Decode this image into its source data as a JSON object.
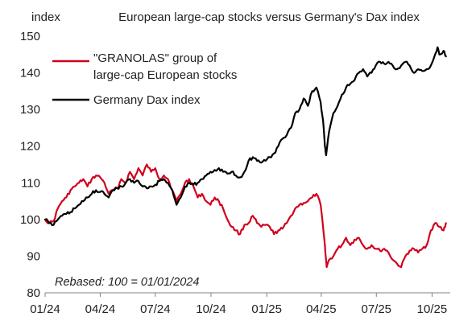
{
  "chart_data": {
    "type": "line",
    "title": "European large-cap stocks versus Germany's Dax index",
    "ylabel": "index",
    "ylim": [
      80,
      150
    ],
    "yticks": [
      80,
      90,
      100,
      110,
      120,
      130,
      140,
      150
    ],
    "xlim": [
      "2024-01-01",
      "2025-10-31"
    ],
    "xticks": [
      "01/24",
      "04/24",
      "07/24",
      "10/24",
      "01/25",
      "04/25",
      "07/25",
      "10/25"
    ],
    "xtick_dates": [
      "2024-01-01",
      "2024-04-01",
      "2024-07-01",
      "2024-10-01",
      "2025-01-01",
      "2025-04-01",
      "2025-07-01",
      "2025-10-01"
    ],
    "note": "Rebased: 100 = 01/01/2024",
    "grid": false,
    "legend_position": "top-left",
    "series": [
      {
        "name": "\"GRANOLAS\" group of large-cap European stocks",
        "name_lines": [
          "\"GRANOLAS\" group of",
          "large-cap European stocks"
        ],
        "color": "#d2001c",
        "points": [
          [
            "2024-01-01",
            100
          ],
          [
            "2024-01-08",
            99
          ],
          [
            "2024-01-15",
            99.5
          ],
          [
            "2024-01-22",
            103
          ],
          [
            "2024-01-29",
            105
          ],
          [
            "2024-02-05",
            106
          ],
          [
            "2024-02-12",
            108
          ],
          [
            "2024-02-19",
            109
          ],
          [
            "2024-02-26",
            110
          ],
          [
            "2024-03-04",
            111
          ],
          [
            "2024-03-11",
            109
          ],
          [
            "2024-03-18",
            111
          ],
          [
            "2024-03-25",
            112
          ],
          [
            "2024-04-01",
            111.5
          ],
          [
            "2024-04-08",
            110
          ],
          [
            "2024-04-15",
            107
          ],
          [
            "2024-04-22",
            108
          ],
          [
            "2024-04-29",
            108.5
          ],
          [
            "2024-05-06",
            111
          ],
          [
            "2024-05-13",
            110
          ],
          [
            "2024-05-20",
            113
          ],
          [
            "2024-05-27",
            111
          ],
          [
            "2024-06-03",
            114
          ],
          [
            "2024-06-10",
            112
          ],
          [
            "2024-06-17",
            115
          ],
          [
            "2024-06-24",
            113
          ],
          [
            "2024-07-01",
            114
          ],
          [
            "2024-07-08",
            111
          ],
          [
            "2024-07-15",
            112
          ],
          [
            "2024-07-22",
            111
          ],
          [
            "2024-07-29",
            108
          ],
          [
            "2024-08-05",
            105
          ],
          [
            "2024-08-12",
            107
          ],
          [
            "2024-08-19",
            110
          ],
          [
            "2024-08-26",
            111
          ],
          [
            "2024-09-02",
            109
          ],
          [
            "2024-09-09",
            106
          ],
          [
            "2024-09-16",
            107
          ],
          [
            "2024-09-23",
            105
          ],
          [
            "2024-09-30",
            104
          ],
          [
            "2024-10-07",
            106
          ],
          [
            "2024-10-14",
            105
          ],
          [
            "2024-10-21",
            103
          ],
          [
            "2024-10-28",
            100
          ],
          [
            "2024-11-04",
            98
          ],
          [
            "2024-11-11",
            97
          ],
          [
            "2024-11-18",
            96
          ],
          [
            "2024-11-25",
            98.5
          ],
          [
            "2024-12-02",
            99
          ],
          [
            "2024-12-09",
            101
          ],
          [
            "2024-12-16",
            99
          ],
          [
            "2024-12-23",
            98
          ],
          [
            "2024-12-30",
            98.5
          ],
          [
            "2025-01-06",
            98
          ],
          [
            "2025-01-13",
            96
          ],
          [
            "2025-01-20",
            97
          ],
          [
            "2025-01-27",
            97.5
          ],
          [
            "2025-02-03",
            99
          ],
          [
            "2025-02-10",
            101
          ],
          [
            "2025-02-17",
            103
          ],
          [
            "2025-02-24",
            104
          ],
          [
            "2025-03-03",
            104.5
          ],
          [
            "2025-03-10",
            105
          ],
          [
            "2025-03-17",
            106
          ],
          [
            "2025-03-24",
            107
          ],
          [
            "2025-03-31",
            104
          ],
          [
            "2025-04-07",
            93
          ],
          [
            "2025-04-10",
            87
          ],
          [
            "2025-04-14",
            89
          ],
          [
            "2025-04-21",
            90
          ],
          [
            "2025-04-28",
            92
          ],
          [
            "2025-05-05",
            93
          ],
          [
            "2025-05-12",
            95
          ],
          [
            "2025-05-19",
            93
          ],
          [
            "2025-05-26",
            94.5
          ],
          [
            "2025-06-02",
            95
          ],
          [
            "2025-06-09",
            93
          ],
          [
            "2025-06-16",
            92
          ],
          [
            "2025-06-23",
            93
          ],
          [
            "2025-06-30",
            92
          ],
          [
            "2025-07-07",
            91.5
          ],
          [
            "2025-07-14",
            92
          ],
          [
            "2025-07-21",
            91
          ],
          [
            "2025-07-28",
            89
          ],
          [
            "2025-08-04",
            88
          ],
          [
            "2025-08-11",
            87
          ],
          [
            "2025-08-18",
            90
          ],
          [
            "2025-08-25",
            91.5
          ],
          [
            "2025-09-01",
            92
          ],
          [
            "2025-09-08",
            91
          ],
          [
            "2025-09-15",
            92
          ],
          [
            "2025-09-22",
            93
          ],
          [
            "2025-09-29",
            97
          ],
          [
            "2025-10-06",
            99
          ],
          [
            "2025-10-13",
            98
          ],
          [
            "2025-10-20",
            97
          ],
          [
            "2025-10-24",
            99
          ]
        ]
      },
      {
        "name": "Germany Dax index",
        "name_lines": [
          "Germany Dax index"
        ],
        "color": "#000000",
        "points": [
          [
            "2024-01-01",
            100
          ],
          [
            "2024-01-08",
            99
          ],
          [
            "2024-01-15",
            98.5
          ],
          [
            "2024-01-22",
            100
          ],
          [
            "2024-01-29",
            101
          ],
          [
            "2024-02-05",
            101.5
          ],
          [
            "2024-02-12",
            102
          ],
          [
            "2024-02-19",
            103
          ],
          [
            "2024-02-26",
            104
          ],
          [
            "2024-03-04",
            105
          ],
          [
            "2024-03-11",
            106
          ],
          [
            "2024-03-18",
            107
          ],
          [
            "2024-03-25",
            108
          ],
          [
            "2024-04-01",
            107.5
          ],
          [
            "2024-04-08",
            107
          ],
          [
            "2024-04-15",
            106
          ],
          [
            "2024-04-22",
            108
          ],
          [
            "2024-04-29",
            108.5
          ],
          [
            "2024-05-06",
            109
          ],
          [
            "2024-05-13",
            110
          ],
          [
            "2024-05-20",
            111
          ],
          [
            "2024-05-27",
            110
          ],
          [
            "2024-06-03",
            110.5
          ],
          [
            "2024-06-10",
            109
          ],
          [
            "2024-06-17",
            108.5
          ],
          [
            "2024-06-24",
            109
          ],
          [
            "2024-07-01",
            109.5
          ],
          [
            "2024-07-08",
            110.5
          ],
          [
            "2024-07-15",
            111
          ],
          [
            "2024-07-22",
            110
          ],
          [
            "2024-07-29",
            108
          ],
          [
            "2024-08-05",
            104
          ],
          [
            "2024-08-12",
            106
          ],
          [
            "2024-08-19",
            109
          ],
          [
            "2024-08-26",
            110
          ],
          [
            "2024-09-02",
            109.5
          ],
          [
            "2024-09-09",
            110
          ],
          [
            "2024-09-16",
            111
          ],
          [
            "2024-09-23",
            112
          ],
          [
            "2024-09-30",
            113
          ],
          [
            "2024-10-07",
            113.5
          ],
          [
            "2024-10-14",
            114
          ],
          [
            "2024-10-21",
            113
          ],
          [
            "2024-10-28",
            112.5
          ],
          [
            "2024-11-04",
            113
          ],
          [
            "2024-11-11",
            112
          ],
          [
            "2024-11-18",
            111.5
          ],
          [
            "2024-11-25",
            113
          ],
          [
            "2024-12-02",
            116
          ],
          [
            "2024-12-09",
            117
          ],
          [
            "2024-12-16",
            116
          ],
          [
            "2024-12-23",
            115.5
          ],
          [
            "2024-12-30",
            116
          ],
          [
            "2025-01-06",
            117
          ],
          [
            "2025-01-13",
            118
          ],
          [
            "2025-01-20",
            120
          ],
          [
            "2025-01-27",
            122
          ],
          [
            "2025-02-03",
            123
          ],
          [
            "2025-02-10",
            125
          ],
          [
            "2025-02-17",
            129
          ],
          [
            "2025-02-24",
            130
          ],
          [
            "2025-03-03",
            133
          ],
          [
            "2025-03-10",
            131
          ],
          [
            "2025-03-17",
            135
          ],
          [
            "2025-03-24",
            136
          ],
          [
            "2025-03-31",
            132
          ],
          [
            "2025-04-04",
            127
          ],
          [
            "2025-04-07",
            120
          ],
          [
            "2025-04-09",
            117.5
          ],
          [
            "2025-04-14",
            124
          ],
          [
            "2025-04-21",
            129
          ],
          [
            "2025-04-28",
            131
          ],
          [
            "2025-05-05",
            134
          ],
          [
            "2025-05-12",
            136
          ],
          [
            "2025-05-19",
            137
          ],
          [
            "2025-05-26",
            138
          ],
          [
            "2025-06-02",
            140
          ],
          [
            "2025-06-09",
            141
          ],
          [
            "2025-06-16",
            139
          ],
          [
            "2025-06-23",
            140
          ],
          [
            "2025-06-30",
            142
          ],
          [
            "2025-07-07",
            143
          ],
          [
            "2025-07-14",
            142.5
          ],
          [
            "2025-07-21",
            143
          ],
          [
            "2025-07-28",
            142
          ],
          [
            "2025-08-04",
            141
          ],
          [
            "2025-08-11",
            142
          ],
          [
            "2025-08-18",
            143
          ],
          [
            "2025-08-25",
            142
          ],
          [
            "2025-09-01",
            140
          ],
          [
            "2025-09-08",
            141
          ],
          [
            "2025-09-15",
            140.5
          ],
          [
            "2025-09-22",
            141
          ],
          [
            "2025-09-29",
            142
          ],
          [
            "2025-10-06",
            145
          ],
          [
            "2025-10-10",
            147
          ],
          [
            "2025-10-13",
            145
          ],
          [
            "2025-10-20",
            146
          ],
          [
            "2025-10-24",
            144.5
          ]
        ]
      }
    ]
  }
}
